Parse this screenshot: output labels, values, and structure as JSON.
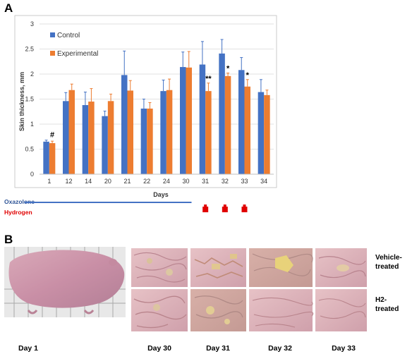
{
  "panel_a_letter": "A",
  "panel_b_letter": "B",
  "colors": {
    "control": "#4472c4",
    "experimental": "#ed7d31",
    "oxazolone_label": "#2f5597",
    "oxazolone_line": "#4472c4",
    "hydrogen": "#e00000"
  },
  "chart_data": {
    "type": "bar",
    "xlabel": "Days",
    "ylabel": "Skin thickness, mm",
    "ylim": [
      0,
      3
    ],
    "yticks": [
      "0",
      "0.5",
      "1",
      "1.5",
      "2",
      "2.5",
      "3"
    ],
    "grid": true,
    "legend_placement": "top-left",
    "categories": [
      "1",
      "12",
      "14",
      "20",
      "21",
      "22",
      "24",
      "30",
      "31",
      "32",
      "33",
      "34"
    ],
    "series": [
      {
        "name": "Control",
        "values": [
          0.65,
          1.46,
          1.38,
          1.16,
          1.98,
          1.31,
          1.66,
          2.14,
          2.19,
          2.41,
          2.08,
          1.64
        ],
        "errors": [
          0.03,
          0.17,
          0.26,
          0.1,
          0.48,
          0.19,
          0.22,
          0.3,
          0.46,
          0.28,
          0.25,
          0.25
        ]
      },
      {
        "name": "Experimental",
        "values": [
          0.62,
          1.68,
          1.45,
          1.46,
          1.67,
          1.31,
          1.68,
          2.13,
          1.66,
          1.96,
          1.75,
          1.58
        ],
        "errors": [
          0.04,
          0.12,
          0.26,
          0.14,
          0.2,
          0.12,
          0.22,
          0.32,
          0.16,
          0.06,
          0.14,
          0.1
        ]
      }
    ],
    "annotations": [
      {
        "category": "1",
        "text": "#"
      },
      {
        "category": "31",
        "text": "**"
      },
      {
        "category": "32",
        "text": "*"
      },
      {
        "category": "33",
        "text": "*"
      }
    ]
  },
  "treatments": {
    "oxazolone": {
      "label": "Oxazolone",
      "from_category": "1",
      "to_category": "30"
    },
    "hydrogen": {
      "label": "Hydrogen",
      "days": [
        "31",
        "32",
        "33"
      ]
    }
  },
  "panel_b": {
    "row_labels": [
      "Vehicle-\ntreated",
      "H2-\ntreated"
    ],
    "day_labels": [
      "Day 1",
      "Day 30",
      "Day 31",
      "Day 32",
      "Day 33"
    ]
  }
}
